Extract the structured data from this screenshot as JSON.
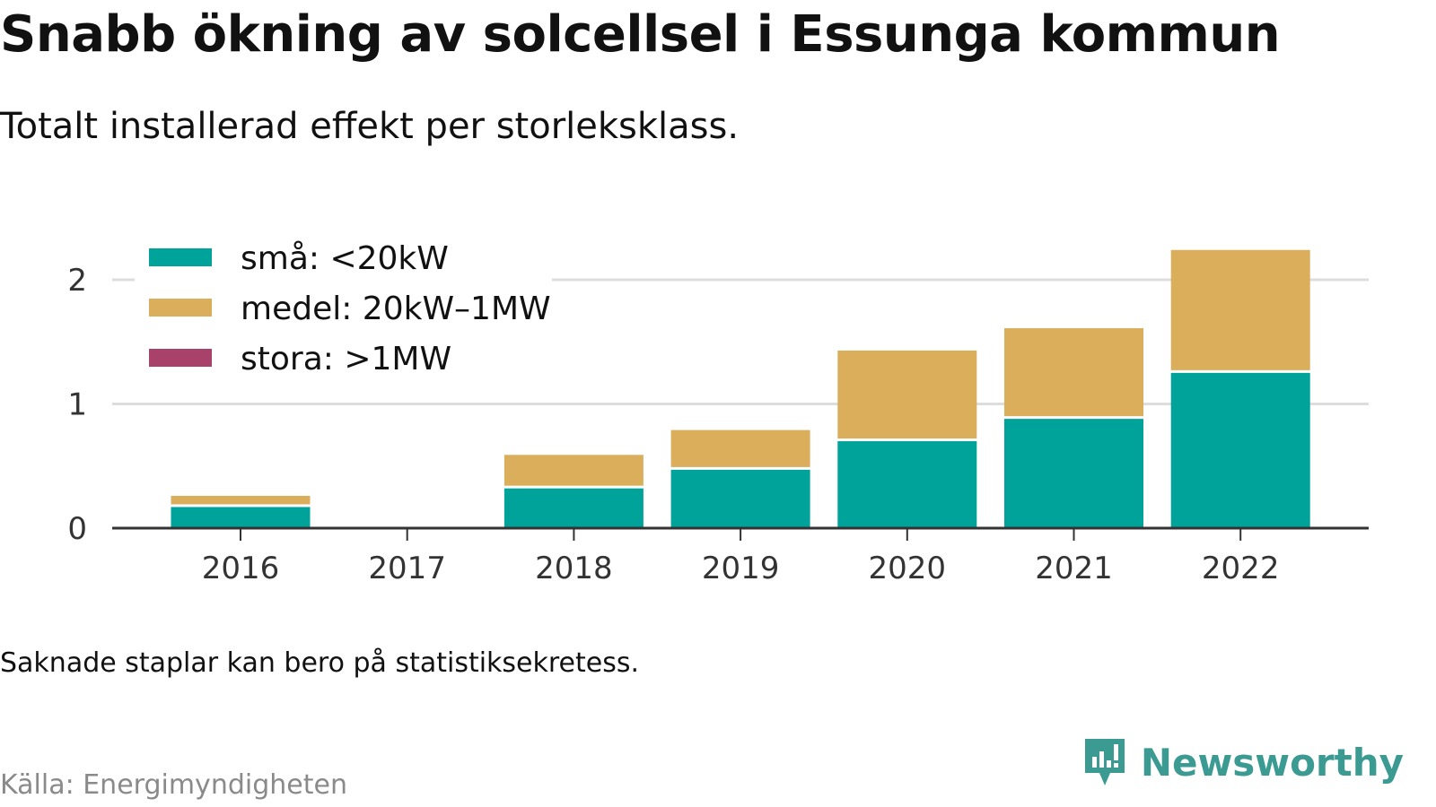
{
  "header": {
    "title": "Snabb ökning av solcellsel i Essunga kommun",
    "subtitle": "Totalt installerad effekt per storleksklass."
  },
  "footer": {
    "note": "Saknade staplar kan bero på statistiksekretess.",
    "source": "Källa: Energimyndigheten",
    "brand": "Newsworthy"
  },
  "colors": {
    "sma": "#00a39a",
    "medel": "#dbae5c",
    "stora": "#a8426b",
    "grid": "#dddddd",
    "axis": "#333333",
    "brand": "#3b9a91"
  },
  "chart_data": {
    "type": "bar",
    "stacked": true,
    "categories": [
      "2016",
      "2017",
      "2018",
      "2019",
      "2020",
      "2021",
      "2022"
    ],
    "series": [
      {
        "name": "små: <20kW",
        "values": [
          0.17,
          null,
          0.32,
          0.47,
          0.7,
          0.88,
          1.25
        ]
      },
      {
        "name": "medel: 20kW–1MW",
        "values": [
          0.09,
          null,
          0.27,
          0.32,
          0.73,
          0.73,
          0.99
        ]
      },
      {
        "name": "stora: >1MW",
        "values": [
          0,
          null,
          0,
          0,
          0,
          0,
          0
        ]
      }
    ],
    "y_ticks": [
      "0",
      "1",
      "2"
    ],
    "ylim": [
      0,
      2.3
    ],
    "grid": true,
    "legend": "top-left",
    "xlabel": "",
    "ylabel": ""
  }
}
